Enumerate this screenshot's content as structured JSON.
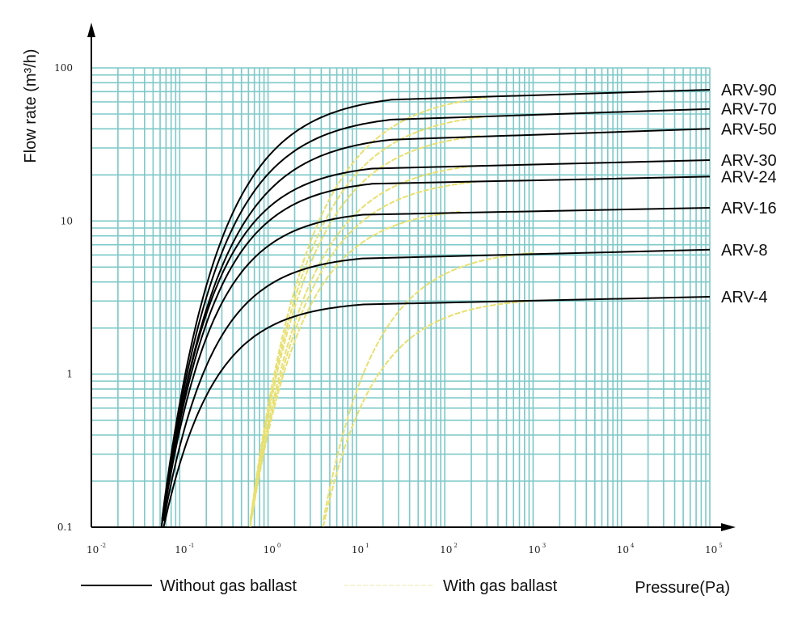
{
  "chart_data": {
    "type": "line",
    "xscale": "log",
    "yscale": "log",
    "xlim": [
      0.01,
      100000
    ],
    "ylim": [
      0.1,
      100
    ],
    "xlabel": "Pressure(Pa)",
    "ylabel": "Flow rate (m³/h)",
    "x_ticks": [
      {
        "base": "10",
        "exp": "-2"
      },
      {
        "base": "10",
        "exp": "-1"
      },
      {
        "base": "10",
        "exp": "0"
      },
      {
        "base": "10",
        "exp": "1"
      },
      {
        "base": "10",
        "exp": "2"
      },
      {
        "base": "10",
        "exp": "3"
      },
      {
        "base": "10",
        "exp": "4"
      },
      {
        "base": "10",
        "exp": "5"
      }
    ],
    "y_ticks": [
      "0.1",
      "1",
      "10",
      "100"
    ],
    "legend": [
      {
        "label": "Without gas ballast",
        "color": "#000000",
        "style": "solid"
      },
      {
        "label": "With gas ballast",
        "color": "#e8e070",
        "style": "dashed"
      }
    ],
    "series": [
      {
        "name": "ARV-90",
        "without_gas_ballast": {
          "x_start": 0.055,
          "x_knee": 25,
          "y_knee": 62,
          "y_end": 72
        },
        "with_gas_ballast": {
          "x_start": 0.55,
          "x_knee": 300,
          "y_knee": 64
        }
      },
      {
        "name": "ARV-70",
        "without_gas_ballast": {
          "x_start": 0.055,
          "x_knee": 25,
          "y_knee": 46,
          "y_end": 54
        },
        "with_gas_ballast": {
          "x_start": 0.55,
          "x_knee": 280,
          "y_knee": 48
        }
      },
      {
        "name": "ARV-50",
        "without_gas_ballast": {
          "x_start": 0.055,
          "x_knee": 25,
          "y_knee": 34,
          "y_end": 40
        },
        "with_gas_ballast": {
          "x_start": 0.55,
          "x_knee": 250,
          "y_knee": 36
        }
      },
      {
        "name": "ARV-30",
        "without_gas_ballast": {
          "x_start": 0.055,
          "x_knee": 15,
          "y_knee": 22,
          "y_end": 25
        },
        "with_gas_ballast": {
          "x_start": 0.55,
          "x_knee": 230,
          "y_knee": 23
        }
      },
      {
        "name": "ARV-24",
        "without_gas_ballast": {
          "x_start": 0.055,
          "x_knee": 15,
          "y_knee": 17.5,
          "y_end": 19.5
        },
        "with_gas_ballast": {
          "x_start": 0.55,
          "x_knee": 220,
          "y_knee": 18
        }
      },
      {
        "name": "ARV-16",
        "without_gas_ballast": {
          "x_start": 0.055,
          "x_knee": 12,
          "y_knee": 11,
          "y_end": 12.2
        },
        "with_gas_ballast": {
          "x_start": 0.55,
          "x_knee": 150,
          "y_knee": 11.5
        }
      },
      {
        "name": "ARV-8",
        "without_gas_ballast": {
          "x_start": 0.055,
          "x_knee": 12,
          "y_knee": 5.7,
          "y_end": 6.5
        },
        "with_gas_ballast": {
          "x_start": 3.5,
          "x_knee": 1000,
          "y_knee": 6.2
        }
      },
      {
        "name": "ARV-4",
        "without_gas_ballast": {
          "x_start": 0.055,
          "x_knee": 12,
          "y_knee": 2.85,
          "y_end": 3.2
        },
        "with_gas_ballast": {
          "x_start": 3.5,
          "x_knee": 900,
          "y_knee": 3.0
        }
      }
    ]
  }
}
